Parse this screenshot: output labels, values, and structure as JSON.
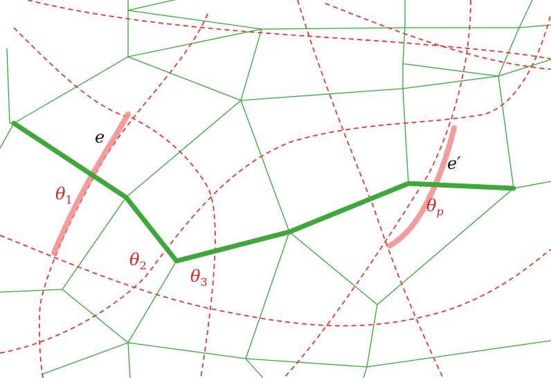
{
  "colors": {
    "mesh_edge": "#33aa33",
    "path": "#3ea83a",
    "dual_curve": "#e8362f",
    "highlight": "#f28a8a",
    "text_black": "#111111",
    "text_red": "#e02020"
  },
  "labels": {
    "e": "e",
    "e_prime": "e′",
    "theta_base": "θ",
    "theta1_sub": "1",
    "theta2_sub": "2",
    "theta3_sub": "3",
    "thetap_sub": "p"
  }
}
